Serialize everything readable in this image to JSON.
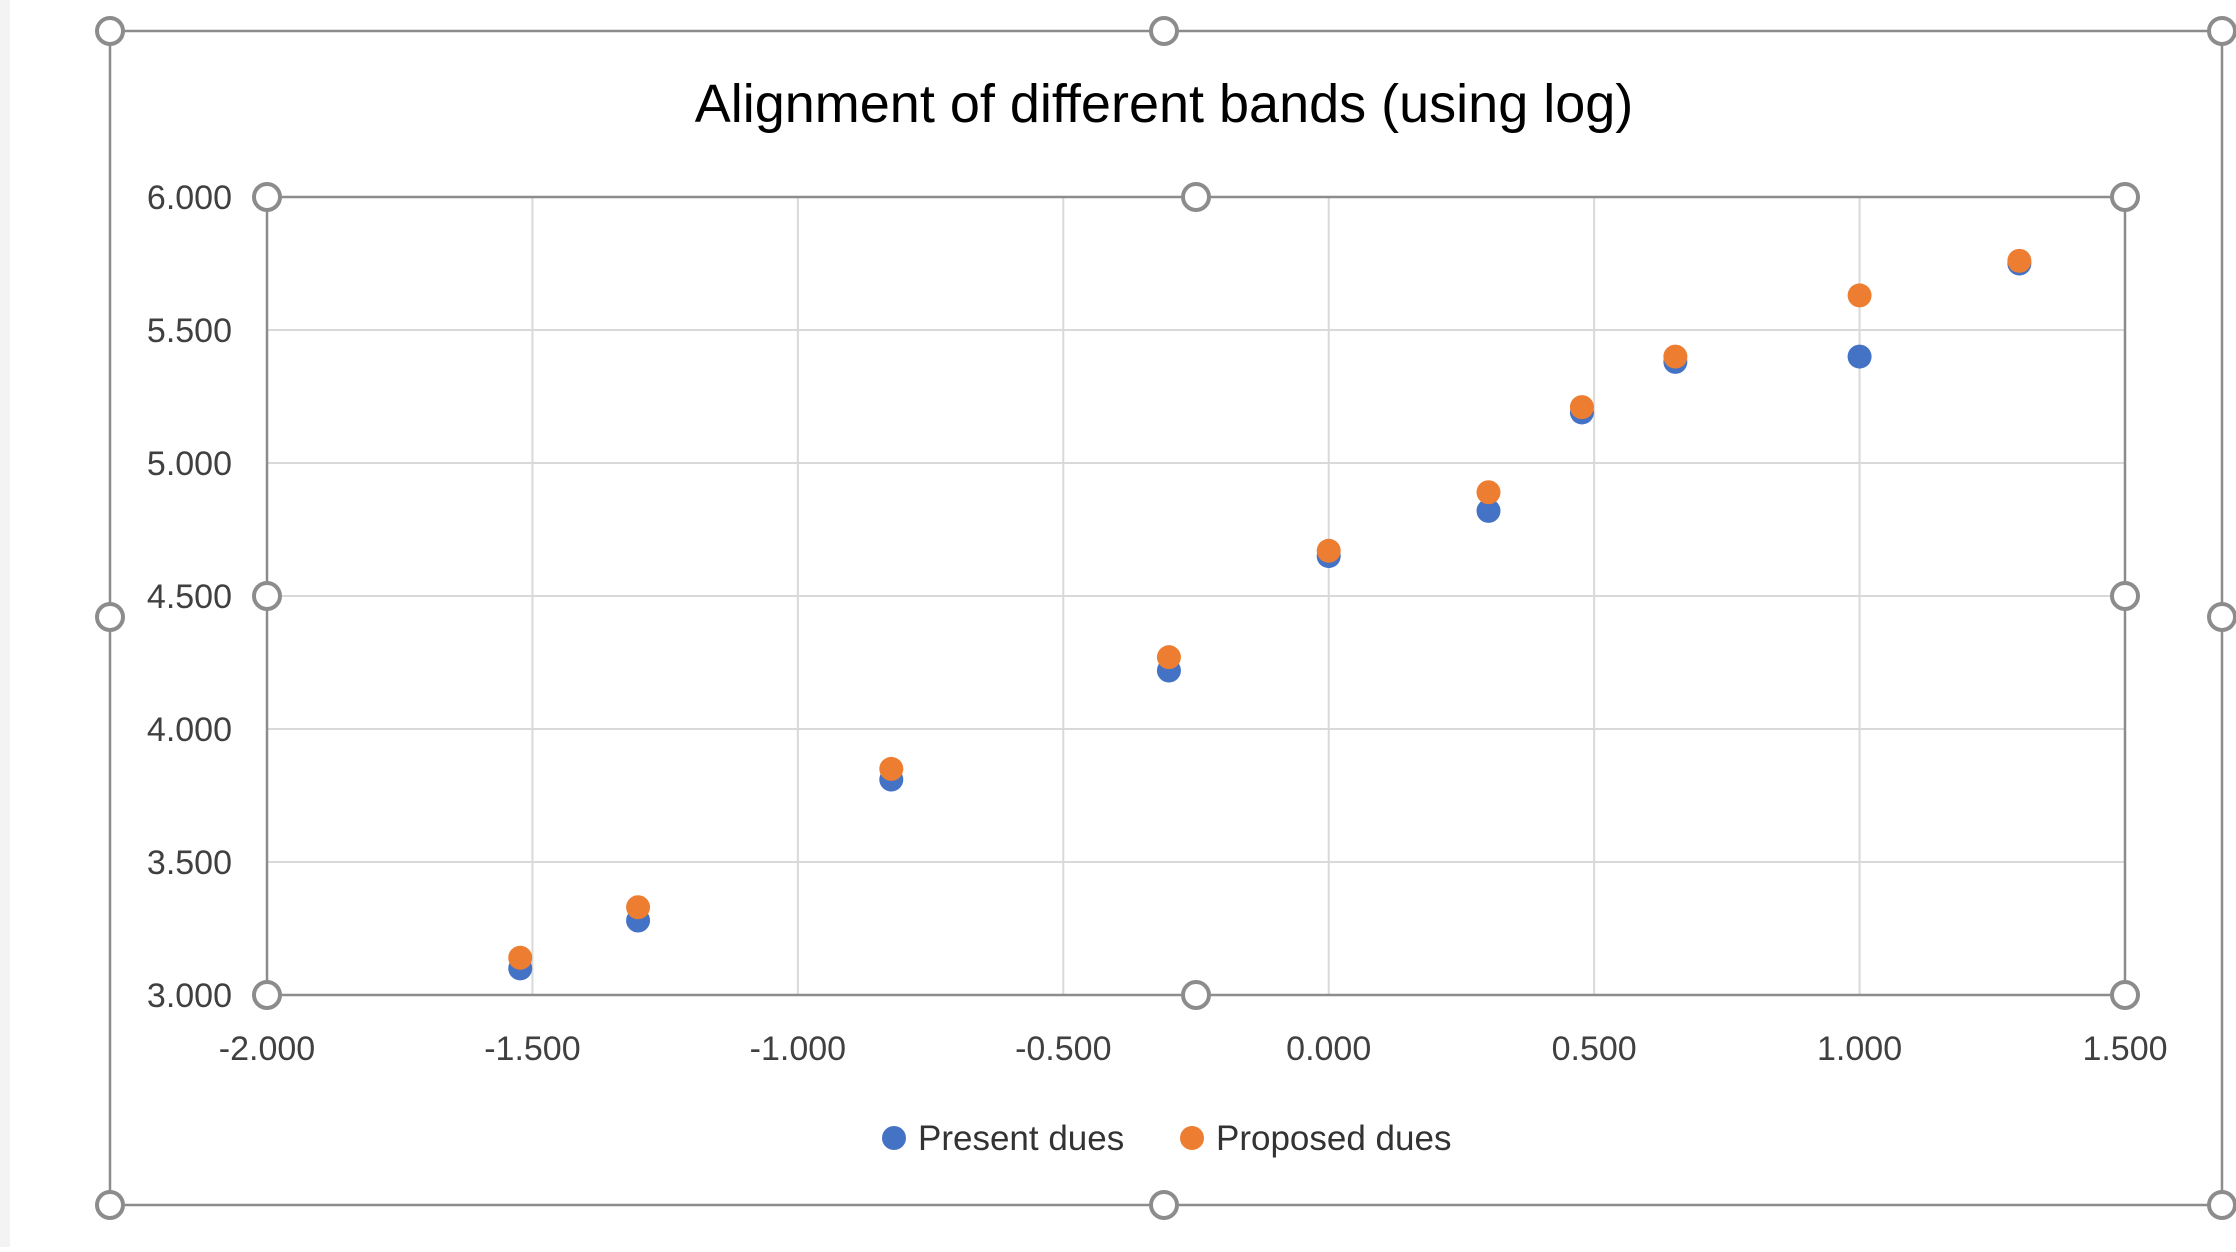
{
  "chart_data": {
    "type": "scatter",
    "title": "Alignment of different bands (using log)",
    "xlim": [
      -2.0,
      1.5
    ],
    "ylim": [
      3.0,
      6.0
    ],
    "x_ticks": [
      "-2.000",
      "-1.500",
      "-1.000",
      "-0.500",
      "0.000",
      "0.500",
      "1.000",
      "1.500"
    ],
    "y_ticks": [
      "3.000",
      "3.500",
      "4.000",
      "4.500",
      "5.000",
      "5.500",
      "6.000"
    ],
    "grid": true,
    "legend_position": "bottom",
    "series": [
      {
        "name": "Present dues",
        "color": "#4472C4",
        "points": [
          {
            "x": -1.523,
            "y": 3.1
          },
          {
            "x": -1.301,
            "y": 3.28
          },
          {
            "x": -0.824,
            "y": 3.81
          },
          {
            "x": -0.301,
            "y": 4.22
          },
          {
            "x": 0.0,
            "y": 4.65
          },
          {
            "x": 0.301,
            "y": 4.82
          },
          {
            "x": 0.477,
            "y": 5.19
          },
          {
            "x": 0.653,
            "y": 5.38
          },
          {
            "x": 1.0,
            "y": 5.4
          },
          {
            "x": 1.301,
            "y": 5.75
          }
        ]
      },
      {
        "name": "Proposed dues",
        "color": "#ED7D31",
        "points": [
          {
            "x": -1.523,
            "y": 3.14
          },
          {
            "x": -1.301,
            "y": 3.33
          },
          {
            "x": -0.824,
            "y": 3.85
          },
          {
            "x": -0.301,
            "y": 4.27
          },
          {
            "x": 0.0,
            "y": 4.67
          },
          {
            "x": 0.301,
            "y": 4.89
          },
          {
            "x": 0.477,
            "y": 5.21
          },
          {
            "x": 0.653,
            "y": 5.4
          },
          {
            "x": 1.0,
            "y": 5.63
          },
          {
            "x": 1.301,
            "y": 5.76
          }
        ]
      }
    ]
  }
}
